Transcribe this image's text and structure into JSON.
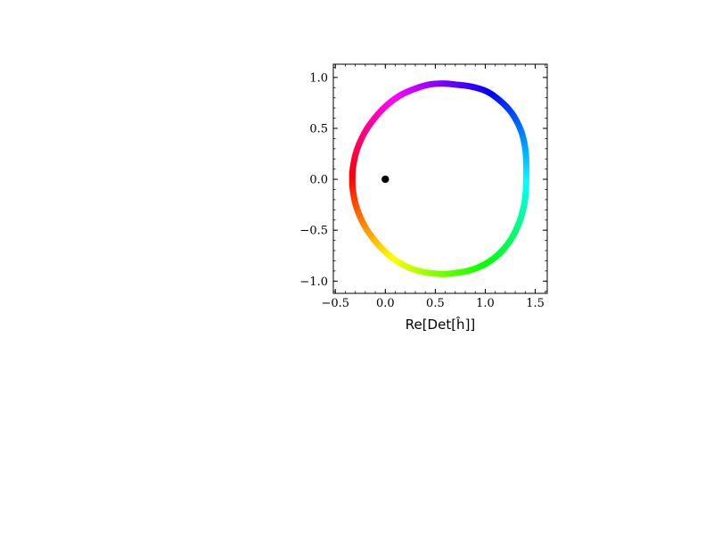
{
  "chart_data": {
    "type": "scatter",
    "title": "",
    "xlabel": "Re[Det[ĥ]]",
    "ylabel": "",
    "xlim": [
      -0.52,
      1.62
    ],
    "ylim": [
      -1.12,
      1.13
    ],
    "x_ticks": [
      -0.5,
      0.0,
      0.5,
      1.0,
      1.5
    ],
    "x_tick_labels": [
      "−0.5",
      "0.0",
      "0.5",
      "1.0",
      "1.5"
    ],
    "y_ticks": [
      -1.0,
      -0.5,
      0.0,
      0.5,
      1.0
    ],
    "y_tick_labels": [
      "−1.0",
      "−0.5",
      "0.0",
      "0.5",
      "1.0"
    ],
    "grid": false,
    "colormap": "hsv",
    "series": [
      {
        "kind": "curve",
        "points": [
          [
            1.41,
            0.0
          ],
          [
            1.41,
            0.16
          ],
          [
            1.4,
            0.3
          ],
          [
            1.37,
            0.44
          ],
          [
            1.32,
            0.56
          ],
          [
            1.25,
            0.67
          ],
          [
            1.15,
            0.77
          ],
          [
            1.02,
            0.86
          ],
          [
            0.86,
            0.91
          ],
          [
            0.7,
            0.93
          ],
          [
            0.58,
            0.94
          ],
          [
            0.44,
            0.93
          ],
          [
            0.3,
            0.89
          ],
          [
            0.16,
            0.83
          ],
          [
            0.03,
            0.74
          ],
          [
            -0.09,
            0.62
          ],
          [
            -0.2,
            0.47
          ],
          [
            -0.28,
            0.3
          ],
          [
            -0.32,
            0.14
          ],
          [
            -0.33,
            0.0
          ],
          [
            -0.32,
            -0.14
          ],
          [
            -0.28,
            -0.3
          ],
          [
            -0.2,
            -0.47
          ],
          [
            -0.09,
            -0.62
          ],
          [
            0.03,
            -0.74
          ],
          [
            0.16,
            -0.83
          ],
          [
            0.3,
            -0.89
          ],
          [
            0.44,
            -0.92
          ],
          [
            0.58,
            -0.93
          ],
          [
            0.7,
            -0.92
          ],
          [
            0.86,
            -0.89
          ],
          [
            1.02,
            -0.82
          ],
          [
            1.15,
            -0.72
          ],
          [
            1.25,
            -0.6
          ],
          [
            1.32,
            -0.47
          ],
          [
            1.37,
            -0.33
          ],
          [
            1.4,
            -0.18
          ],
          [
            1.41,
            0.0
          ]
        ]
      },
      {
        "kind": "marker",
        "x": 0.0,
        "y": 0.0,
        "color": "#000000"
      }
    ]
  }
}
